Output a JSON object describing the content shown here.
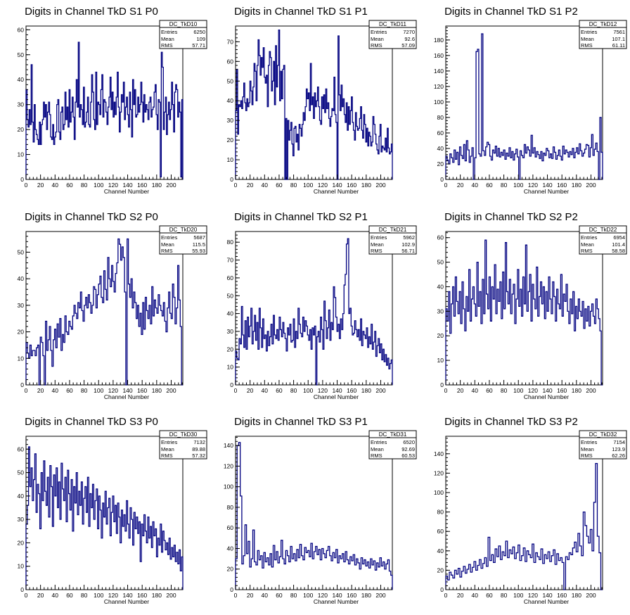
{
  "colors": {
    "line": "#000080",
    "frame": "#000000",
    "background": "#ffffff"
  },
  "chart_data": [
    {
      "type": "histogram",
      "title": "Digits in Channel TkD S1 P0",
      "xlabel": "Channel Number",
      "ylabel": "",
      "xlim": [
        0,
        216
      ],
      "ylim": [
        0,
        61.5
      ],
      "xticks": [
        0,
        20,
        40,
        60,
        80,
        100,
        120,
        140,
        160,
        180,
        200
      ],
      "yticks": [
        0,
        10,
        20,
        30,
        40,
        50,
        60
      ],
      "stats": {
        "name": "DC_TkD10",
        "entries": "6250",
        "mean": "109",
        "rms": "57.71"
      },
      "values": [
        36,
        24,
        21,
        28,
        22,
        46,
        23,
        15,
        30,
        20,
        18,
        16,
        14,
        23,
        14,
        22,
        24,
        31,
        25,
        30,
        20,
        27,
        31,
        26,
        17,
        16,
        22,
        14,
        17,
        19,
        30,
        32,
        19,
        16,
        27,
        29,
        20,
        22,
        35,
        24,
        29,
        21,
        36,
        23,
        27,
        33,
        25,
        16,
        31,
        40,
        29,
        55,
        25,
        30,
        28,
        22,
        37,
        21,
        23,
        27,
        33,
        22,
        21,
        31,
        42,
        35,
        24,
        20,
        43,
        22,
        31,
        30,
        26,
        36,
        42,
        25,
        32,
        31,
        27,
        22,
        29,
        33,
        41,
        28,
        35,
        25,
        31,
        26,
        33,
        43,
        29,
        19,
        27,
        34,
        31,
        39,
        24,
        29,
        33,
        26,
        21,
        35,
        28,
        17,
        40,
        30,
        36,
        25,
        26,
        33,
        27,
        30,
        39,
        31,
        23,
        34,
        27,
        30,
        28,
        24,
        31,
        33,
        25,
        28,
        29,
        35,
        38,
        26,
        20,
        32,
        31,
        1,
        51,
        45,
        20,
        27,
        33,
        18,
        26,
        31,
        24,
        28,
        39,
        30,
        19,
        35,
        38,
        36,
        25,
        31,
        27,
        1,
        32
      ]
    },
    {
      "type": "histogram",
      "title": "Digits in Channel TkD S1 P1",
      "xlabel": "Channel Number",
      "ylabel": "",
      "xlim": [
        0,
        216
      ],
      "ylim": [
        0,
        78
      ],
      "xticks": [
        0,
        20,
        40,
        60,
        80,
        100,
        120,
        140,
        160,
        180,
        200
      ],
      "yticks": [
        0,
        10,
        20,
        30,
        40,
        50,
        60,
        70
      ],
      "stats": {
        "name": "DC_TkD11",
        "entries": "7270",
        "mean": "92.6",
        "rms": "57.09"
      },
      "values": [
        35,
        56,
        23,
        38,
        37,
        40,
        36,
        42,
        49,
        39,
        35,
        41,
        37,
        39,
        50,
        45,
        38,
        47,
        59,
        55,
        40,
        58,
        71,
        63,
        53,
        62,
        57,
        67,
        52,
        49,
        53,
        37,
        58,
        65,
        62,
        45,
        50,
        60,
        38,
        68,
        47,
        58,
        76,
        40,
        55,
        41,
        56,
        58,
        0,
        31,
        0,
        30,
        20,
        25,
        29,
        18,
        12,
        26,
        27,
        19,
        23,
        15,
        28,
        26,
        22,
        28,
        34,
        30,
        37,
        46,
        41,
        44,
        35,
        59,
        38,
        42,
        31,
        44,
        37,
        40,
        47,
        37,
        30,
        28,
        42,
        36,
        43,
        34,
        46,
        36,
        39,
        31,
        27,
        32,
        36,
        35,
        52,
        33,
        29,
        0,
        73,
        43,
        35,
        48,
        37,
        41,
        33,
        29,
        39,
        25,
        37,
        28,
        35,
        42,
        29,
        25,
        20,
        34,
        27,
        25,
        26,
        31,
        37,
        25,
        21,
        33,
        28,
        19,
        26,
        17,
        24,
        22,
        17,
        19,
        32,
        28,
        23,
        18,
        15,
        13,
        22,
        28,
        14,
        17,
        16,
        15,
        21,
        14,
        26,
        16,
        13,
        14,
        18
      ]
    },
    {
      "type": "histogram",
      "title": "Digits in Channel TkD S1 P2",
      "xlabel": "Channel Number",
      "ylabel": "",
      "xlim": [
        0,
        216
      ],
      "ylim": [
        0,
        198
      ],
      "xticks": [
        0,
        20,
        40,
        60,
        80,
        100,
        120,
        140,
        160,
        180,
        200
      ],
      "yticks": [
        0,
        20,
        40,
        60,
        80,
        100,
        120,
        140,
        160,
        180
      ],
      "stats": {
        "name": "DC_TkD12",
        "entries": "7561",
        "mean": "107.1",
        "rms": "61.11"
      },
      "values": [
        30,
        25,
        20,
        33,
        28,
        22,
        38,
        26,
        35,
        19,
        42,
        31,
        27,
        45,
        24,
        50,
        38,
        22,
        30,
        41,
        0,
        28,
        165,
        168,
        33,
        30,
        188,
        37,
        31,
        42,
        48,
        45,
        30,
        25,
        38,
        34,
        43,
        30,
        40,
        29,
        35,
        31,
        38,
        26,
        34,
        30,
        41,
        28,
        36,
        25,
        33,
        39,
        29,
        0,
        37,
        31,
        28,
        45,
        34,
        42,
        38,
        30,
        57,
        34,
        41,
        29,
        36,
        32,
        27,
        36,
        24,
        34,
        31,
        40,
        37,
        28,
        33,
        27,
        42,
        35,
        26,
        31,
        38,
        30,
        25,
        43,
        33,
        38,
        35,
        29,
        36,
        32,
        40,
        28,
        35,
        41,
        33,
        46,
        37,
        30,
        34,
        39,
        45,
        44,
        29,
        41,
        58,
        31,
        39,
        47,
        36,
        0,
        80,
        35
      ]
    },
    {
      "type": "histogram",
      "title": "Digits in Channel TkD S2 P0",
      "xlabel": "Channel Number",
      "ylabel": "",
      "xlim": [
        0,
        216
      ],
      "ylim": [
        0,
        57.8
      ],
      "xticks": [
        0,
        20,
        40,
        60,
        80,
        100,
        120,
        140,
        160,
        180,
        200
      ],
      "yticks": [
        0,
        10,
        20,
        30,
        40,
        50
      ],
      "stats": {
        "name": "DC_TkD20",
        "entries": "5687",
        "mean": "115.5",
        "rms": "55.93"
      },
      "values": [
        16,
        12,
        10,
        15,
        11,
        13,
        13,
        11,
        14,
        15,
        0,
        18,
        16,
        11,
        0,
        24,
        13,
        17,
        22,
        13,
        7,
        17,
        21,
        14,
        23,
        18,
        25,
        13,
        19,
        16,
        26,
        20,
        19,
        24,
        22,
        21,
        26,
        30,
        27,
        25,
        31,
        29,
        35,
        28,
        24,
        30,
        33,
        29,
        34,
        31,
        27,
        30,
        37,
        36,
        29,
        34,
        38,
        41,
        33,
        31,
        43,
        36,
        32,
        48,
        40,
        37,
        45,
        39,
        35,
        42,
        46,
        55,
        53,
        47,
        52,
        48,
        35,
        0,
        55,
        38,
        33,
        40,
        29,
        35,
        31,
        25,
        30,
        22,
        27,
        19,
        31,
        21,
        33,
        28,
        25,
        30,
        23,
        37,
        26,
        32,
        29,
        27,
        34,
        30,
        28,
        26,
        31,
        24,
        20,
        29,
        35,
        27,
        25,
        38,
        33,
        23,
        29,
        45,
        32,
        22,
        0
      ]
    },
    {
      "type": "histogram",
      "title": "Digits in Channel TkD S2 P1",
      "xlabel": "Channel Number",
      "ylabel": "",
      "xlim": [
        0,
        216
      ],
      "ylim": [
        0,
        86
      ],
      "xticks": [
        0,
        20,
        40,
        60,
        80,
        100,
        120,
        140,
        160,
        180,
        200
      ],
      "yticks": [
        0,
        10,
        20,
        30,
        40,
        50,
        60,
        70,
        80
      ],
      "stats": {
        "name": "DC_TkD21",
        "entries": "5962",
        "mean": "102.9",
        "rms": "56.71"
      },
      "values": [
        19,
        15,
        14,
        26,
        23,
        44,
        28,
        21,
        36,
        20,
        38,
        27,
        33,
        43,
        23,
        30,
        39,
        25,
        35,
        20,
        43,
        32,
        21,
        37,
        26,
        28,
        19,
        30,
        22,
        27,
        34,
        23,
        39,
        28,
        26,
        31,
        25,
        38,
        31,
        27,
        35,
        29,
        26,
        19,
        32,
        28,
        34,
        24,
        25,
        37,
        21,
        30,
        26,
        43,
        34,
        29,
        27,
        38,
        30,
        36,
        33,
        28,
        25,
        31,
        20,
        32,
        28,
        33,
        0,
        27,
        30,
        24,
        38,
        31,
        20,
        47,
        36,
        26,
        32,
        42,
        25,
        35,
        31,
        55,
        49,
        38,
        30,
        34,
        26,
        37,
        31,
        40,
        56,
        62,
        79,
        82,
        40,
        43,
        33,
        28,
        29,
        36,
        31,
        27,
        31,
        25,
        37,
        22,
        30,
        28,
        26,
        32,
        21,
        27,
        23,
        34,
        20,
        24,
        30,
        16,
        22,
        26,
        18,
        23,
        14,
        20,
        13,
        17,
        11,
        15,
        9,
        12,
        14
      ]
    },
    {
      "type": "histogram",
      "title": "Digits in Channel TkD S2 P2",
      "xlabel": "Channel Number",
      "ylabel": "",
      "xlim": [
        0,
        216
      ],
      "ylim": [
        0,
        62.5
      ],
      "xticks": [
        0,
        20,
        40,
        60,
        80,
        100,
        120,
        140,
        160,
        180,
        200
      ],
      "yticks": [
        0,
        10,
        20,
        30,
        40,
        50,
        60
      ],
      "stats": {
        "name": "DC_TkD22",
        "entries": "6954",
        "mean": "101.4",
        "rms": "58.58"
      },
      "values": [
        31,
        26,
        38,
        21,
        33,
        40,
        28,
        44,
        34,
        29,
        38,
        25,
        42,
        31,
        22,
        36,
        30,
        47,
        26,
        35,
        40,
        33,
        28,
        50,
        32,
        38,
        25,
        43,
        29,
        59,
        37,
        31,
        44,
        26,
        40,
        35,
        49,
        29,
        39,
        34,
        42,
        27,
        46,
        31,
        58,
        38,
        33,
        43,
        29,
        37,
        41,
        25,
        35,
        47,
        32,
        39,
        28,
        44,
        33,
        57,
        30,
        38,
        45,
        26,
        41,
        35,
        31,
        48,
        28,
        36,
        42,
        33,
        40,
        27,
        38,
        30,
        44,
        35,
        29,
        42,
        36,
        26,
        39,
        33,
        31,
        45,
        28,
        37,
        34,
        41,
        30,
        25,
        35,
        29,
        38,
        22,
        32,
        27,
        35,
        30,
        28,
        34,
        23,
        31,
        26,
        32,
        24,
        30,
        33,
        28,
        25,
        35,
        31,
        27,
        22,
        0
      ]
    },
    {
      "type": "histogram",
      "title": "Digits in Channel TkD S3 P0",
      "xlabel": "Channel Number",
      "ylabel": "",
      "xlim": [
        0,
        216
      ],
      "ylim": [
        0,
        65.5
      ],
      "xticks": [
        0,
        20,
        40,
        60,
        80,
        100,
        120,
        140,
        160,
        180,
        200
      ],
      "yticks": [
        0,
        10,
        20,
        30,
        40,
        50,
        60
      ],
      "stats": {
        "name": "DC_TkD30",
        "entries": "7132",
        "mean": "89.88",
        "rms": "57.32"
      },
      "values": [
        28,
        36,
        61,
        44,
        52,
        38,
        47,
        58,
        33,
        45,
        41,
        26,
        50,
        38,
        55,
        42,
        36,
        48,
        31,
        53,
        44,
        27,
        49,
        40,
        52,
        35,
        46,
        30,
        54,
        43,
        38,
        48,
        29,
        51,
        41,
        34,
        47,
        25,
        44,
        37,
        50,
        32,
        42,
        36,
        46,
        28,
        39,
        44,
        33,
        48,
        27,
        41,
        35,
        45,
        30,
        38,
        43,
        26,
        40,
        34,
        22,
        37,
        31,
        42,
        28,
        35,
        39,
        23,
        33,
        40,
        29,
        36,
        24,
        37,
        31,
        20,
        34,
        27,
        32,
        25,
        38,
        28,
        22,
        35,
        30,
        19,
        33,
        26,
        31,
        24,
        29,
        12,
        28,
        23,
        32,
        25,
        20,
        31,
        22,
        27,
        18,
        29,
        23,
        26,
        14,
        22,
        19,
        28,
        16,
        25,
        21,
        17,
        20,
        15,
        22,
        13,
        18,
        14,
        19,
        12,
        16,
        11,
        17,
        8,
        14
      ]
    },
    {
      "type": "histogram",
      "title": "Digits in Channel TkD S3 P1",
      "xlabel": "Channel Number",
      "ylabel": "",
      "xlim": [
        0,
        216
      ],
      "ylim": [
        0,
        149
      ],
      "xticks": [
        0,
        20,
        40,
        60,
        80,
        100,
        120,
        140,
        160,
        180,
        200
      ],
      "yticks": [
        0,
        20,
        40,
        60,
        80,
        100,
        120,
        140
      ],
      "stats": {
        "name": "DC_TkD31",
        "entries": "6520",
        "mean": "92.69",
        "rms": "60.53"
      },
      "values": [
        30,
        140,
        143,
        91,
        25,
        33,
        63,
        35,
        47,
        22,
        30,
        58,
        27,
        24,
        38,
        29,
        33,
        21,
        36,
        27,
        31,
        24,
        35,
        22,
        43,
        29,
        37,
        26,
        32,
        48,
        30,
        25,
        38,
        33,
        27,
        42,
        30,
        35,
        28,
        39,
        31,
        44,
        33,
        29,
        41,
        36,
        38,
        32,
        45,
        30,
        37,
        42,
        34,
        39,
        29,
        40,
        35,
        31,
        38,
        42,
        33,
        28,
        36,
        31,
        39,
        26,
        33,
        30,
        35,
        27,
        37,
        29,
        25,
        32,
        28,
        34,
        24,
        30,
        26,
        20,
        31,
        25,
        29,
        23,
        27,
        21,
        30,
        24,
        28,
        19,
        26,
        22,
        31,
        23,
        27,
        20,
        25,
        29,
        18,
        14
      ]
    },
    {
      "type": "histogram",
      "title": "Digits in Channel TkD S3 P2",
      "xlabel": "Channel Number",
      "ylabel": "",
      "xlim": [
        0,
        216
      ],
      "ylim": [
        0,
        158
      ],
      "xticks": [
        0,
        20,
        40,
        60,
        80,
        100,
        120,
        140,
        160,
        180,
        200
      ],
      "yticks": [
        0,
        20,
        40,
        60,
        80,
        100,
        120,
        140
      ],
      "stats": {
        "name": "DC_TkD32",
        "entries": "7154",
        "mean": "123.9",
        "rms": "62.26"
      },
      "values": [
        14,
        10,
        18,
        15,
        12,
        20,
        16,
        22,
        13,
        19,
        24,
        17,
        21,
        26,
        18,
        23,
        29,
        20,
        25,
        31,
        22,
        27,
        33,
        24,
        54,
        30,
        36,
        28,
        42,
        34,
        45,
        31,
        39,
        35,
        50,
        33,
        41,
        37,
        44,
        32,
        38,
        46,
        30,
        35,
        43,
        29,
        40,
        36,
        33,
        47,
        28,
        38,
        34,
        31,
        42,
        27,
        36,
        32,
        39,
        29,
        35,
        41,
        26,
        37,
        30,
        33,
        28,
        0,
        34,
        31,
        38,
        36,
        43,
        49,
        39,
        58,
        45,
        35,
        80,
        66,
        55,
        48,
        62,
        40,
        90,
        130,
        55,
        38,
        0
      ]
    }
  ]
}
